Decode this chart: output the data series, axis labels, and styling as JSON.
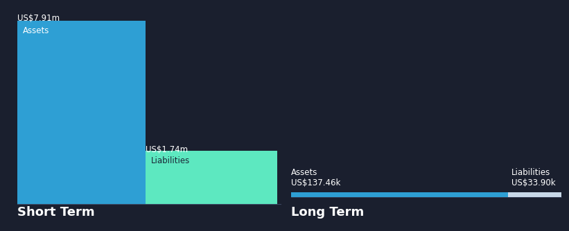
{
  "background_color": "#1a1f2e",
  "short_term": {
    "assets_value": 7.91,
    "assets_label": "Assets",
    "assets_value_label": "US$7.91m",
    "liabilities_value": 1.74,
    "liabilities_label": "Liabilities",
    "liabilities_value_label": "US$1.74m",
    "assets_color": "#2e9fd4",
    "liabilities_color": "#5de8c0",
    "liabilities_text_color": "#1a2535",
    "section_label": "Short Term"
  },
  "long_term": {
    "assets_value": 137.46,
    "assets_label": "Assets",
    "assets_value_label": "US$137.46k",
    "liabilities_value": 33.9,
    "liabilities_label": "Liabilities",
    "liabilities_value_label": "US$33.90k",
    "assets_color": "#2e9fd4",
    "liabilities_color": "#c8d8e8",
    "section_label": "Long Term"
  },
  "text_color": "#ffffff",
  "label_fontsize": 8.5,
  "value_fontsize": 8.5,
  "section_fontsize": 13,
  "inner_label_fontsize": 8.5
}
